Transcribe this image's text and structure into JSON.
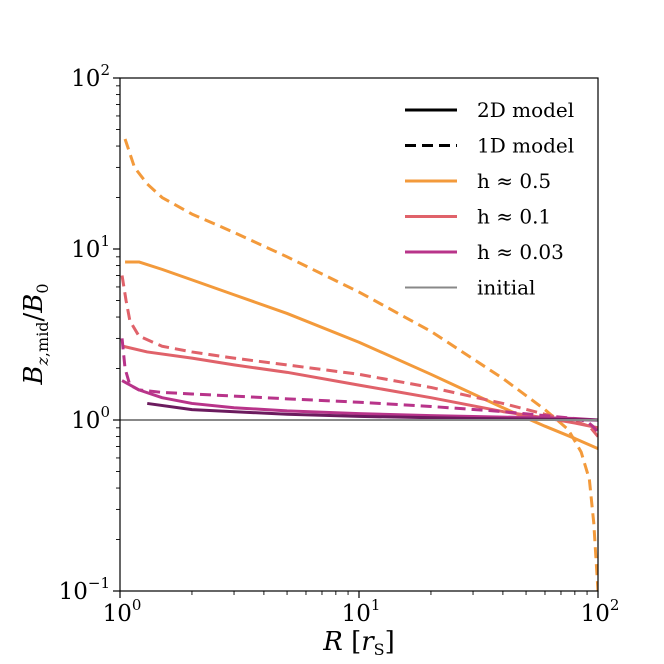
{
  "chart_data": {
    "type": "line",
    "title": "",
    "xlabel": "R [r_S]",
    "ylabel": "B_z,mid / B_0",
    "xscale": "log",
    "yscale": "log",
    "xlim": [
      1,
      100
    ],
    "ylim": [
      0.1,
      100
    ],
    "x_ticks": [
      1,
      10,
      100
    ],
    "y_ticks": [
      0.1,
      1,
      10,
      100
    ],
    "x_tick_labels": [
      {
        "base": "10",
        "exp": "0"
      },
      {
        "base": "10",
        "exp": "1"
      },
      {
        "base": "10",
        "exp": "2"
      }
    ],
    "y_tick_labels": [
      {
        "base": "10",
        "exp": "−1"
      },
      {
        "base": "10",
        "exp": "0"
      },
      {
        "base": "10",
        "exp": "1"
      },
      {
        "base": "10",
        "exp": "2"
      }
    ],
    "legend_position": "top-right",
    "legend": [
      {
        "label": "2D model",
        "color": "#000000",
        "dash": "solid"
      },
      {
        "label": "1D model",
        "color": "#000000",
        "dash": "dashed"
      },
      {
        "label": "h ≈ 0.5",
        "color": "#F39A3B",
        "dash": "solid"
      },
      {
        "label": "h ≈ 0.1",
        "color": "#E0626A",
        "dash": "solid"
      },
      {
        "label": "h ≈ 0.03",
        "color": "#B8348A",
        "dash": "solid"
      },
      {
        "label": "initial",
        "color": "#888888",
        "dash": "solid"
      }
    ],
    "series": [
      {
        "name": "2D h≈0.5",
        "color": "#F39A3B",
        "dash": "solid",
        "x": [
          1.05,
          1.2,
          1.5,
          2,
          3,
          5,
          10,
          20,
          40,
          60,
          80,
          100
        ],
        "y": [
          8.4,
          8.4,
          7.6,
          6.6,
          5.4,
          4.2,
          2.85,
          1.85,
          1.18,
          0.92,
          0.78,
          0.68
        ]
      },
      {
        "name": "1D h≈0.5",
        "color": "#F39A3B",
        "dash": "dashed",
        "x": [
          1.05,
          1.15,
          1.3,
          1.5,
          2,
          3,
          5,
          10,
          20,
          40,
          60,
          75,
          85,
          92,
          96,
          100
        ],
        "y": [
          44,
          30,
          24,
          20,
          16,
          12.5,
          9,
          5.6,
          3.3,
          1.75,
          1.15,
          0.88,
          0.65,
          0.45,
          0.25,
          0.1
        ]
      },
      {
        "name": "2D h≈0.1",
        "color": "#E0626A",
        "dash": "solid",
        "x": [
          1.03,
          1.3,
          2,
          3,
          5,
          10,
          20,
          40,
          60,
          80,
          100
        ],
        "y": [
          2.7,
          2.5,
          2.3,
          2.1,
          1.9,
          1.6,
          1.35,
          1.12,
          1.03,
          0.96,
          0.9
        ]
      },
      {
        "name": "1D h≈0.1",
        "color": "#E0626A",
        "dash": "dashed",
        "x": [
          1.02,
          1.06,
          1.1,
          1.2,
          1.5,
          2,
          3,
          5,
          10,
          20,
          40,
          60,
          80,
          92,
          100
        ],
        "y": [
          7.0,
          5.0,
          3.8,
          3.1,
          2.7,
          2.5,
          2.3,
          2.1,
          1.85,
          1.55,
          1.25,
          1.08,
          0.98,
          0.92,
          0.8
        ]
      },
      {
        "name": "2D h≈0.03",
        "color": "#B8348A",
        "dash": "solid",
        "x": [
          1.02,
          1.2,
          1.5,
          2,
          3,
          5,
          10,
          20,
          40,
          60,
          80,
          100
        ],
        "y": [
          1.7,
          1.5,
          1.35,
          1.25,
          1.18,
          1.13,
          1.09,
          1.06,
          1.04,
          1.03,
          1.02,
          1.0
        ]
      },
      {
        "name": "1D h≈0.03",
        "color": "#B8348A",
        "dash": "dashed",
        "x": [
          1.02,
          1.05,
          1.1,
          1.2,
          1.5,
          2,
          3,
          5,
          10,
          20,
          40,
          60,
          80,
          90,
          95,
          100
        ],
        "y": [
          3.0,
          2.0,
          1.6,
          1.5,
          1.45,
          1.42,
          1.38,
          1.33,
          1.27,
          1.2,
          1.12,
          1.06,
          1.02,
          0.98,
          0.92,
          0.85
        ]
      },
      {
        "name": "2D dark",
        "color": "#6B1B5E",
        "dash": "solid",
        "x": [
          1.3,
          2,
          5,
          10,
          30,
          60,
          100
        ],
        "y": [
          1.25,
          1.15,
          1.08,
          1.05,
          1.02,
          1.01,
          1.0
        ]
      },
      {
        "name": "initial",
        "color": "#888888",
        "dash": "solid",
        "x": [
          1,
          100
        ],
        "y": [
          1.0,
          1.0
        ]
      }
    ]
  }
}
